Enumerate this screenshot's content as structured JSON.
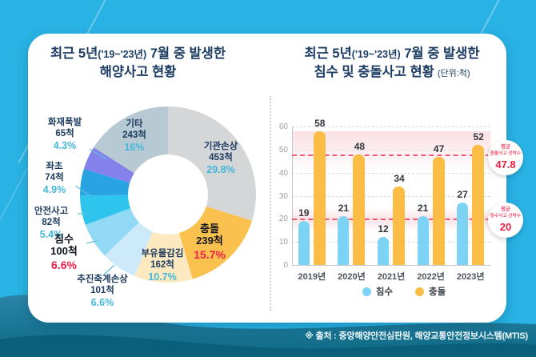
{
  "canvas": {
    "bg_color": "#29b2e4",
    "wave_color_top": "#2a85a8",
    "wave_color_bottom": "#0a5f7a",
    "card_color": "#ffffff"
  },
  "source_note": "※ 출처 : 중앙해양안전심판원, 해양교통안전정보시스템(MTIS)",
  "left_panel": {
    "title_line1_prefix": "최근 5년",
    "title_line1_paren": "('19~'23년)",
    "title_line1_suffix": " 7월 중 발생한",
    "title_line2": "해양사고 현황"
  },
  "right_panel": {
    "title_line1_prefix": "최근 5년",
    "title_line1_paren": "('19~'23년)",
    "title_line1_suffix": " 7월 중 발생한",
    "title_line2": "침수 및 충돌사고 현황",
    "unit_label": "(단위:척)"
  },
  "badges": [
    {
      "line1": "평균",
      "line2": "충돌사고 선박수",
      "value": "47.8"
    },
    {
      "line1": "평균",
      "line2": "침수사고 선박수",
      "value": "20"
    }
  ],
  "chart_data": [
    {
      "type": "pie",
      "subtype": "donut",
      "title": "최근 5년('19~'23년) 7월 중 발생한 해양사고 현황",
      "unit": "척",
      "accent_colors": {
        "navy_text": "#1e3c60",
        "cyan_pct_text": "#45b7d8",
        "red_highlight": "#f01f47"
      },
      "segments": [
        {
          "label": "기관손상",
          "value": 453,
          "pct": 29.8,
          "count_label": "453척",
          "pct_label": "29.8%",
          "color": "#d4d6d8",
          "emphasis": false
        },
        {
          "label": "충돌",
          "value": 239,
          "pct": 15.7,
          "count_label": "239척",
          "pct_label": "15.7%",
          "color": "#fbc14e",
          "emphasis": true
        },
        {
          "label": "부유물감김",
          "value": 162,
          "pct": 10.7,
          "count_label": "162척",
          "pct_label": "10.7%",
          "color": "#fce9c0",
          "emphasis": false
        },
        {
          "label": "추진축계손상",
          "value": 101,
          "pct": 6.6,
          "count_label": "101척",
          "pct_label": "6.6%",
          "color": "#cdeafa",
          "emphasis": false
        },
        {
          "label": "침수",
          "value": 100,
          "pct": 6.6,
          "count_label": "100척",
          "pct_label": "6.6%",
          "color": "#92d9f5",
          "emphasis": true
        },
        {
          "label": "안전사고",
          "value": 82,
          "pct": 5.4,
          "count_label": "82척",
          "pct_label": "5.4%",
          "color": "#2fc4ee",
          "emphasis": false
        },
        {
          "label": "좌초",
          "value": 74,
          "pct": 4.9,
          "count_label": "74척",
          "pct_label": "4.9%",
          "color": "#2aa3e2",
          "emphasis": false
        },
        {
          "label": "화재폭발",
          "value": 65,
          "pct": 4.3,
          "count_label": "65척",
          "pct_label": "4.3%",
          "color": "#8481ea",
          "emphasis": false
        },
        {
          "label": "기타",
          "value": 243,
          "pct": 16.0,
          "count_label": "243척",
          "pct_label": "16%",
          "color": "#b7c9d3",
          "emphasis": false
        }
      ]
    },
    {
      "type": "bar",
      "title": "최근 5년('19~'23년) 7월 중 발생한 침수 및 충돌사고 현황",
      "unit": "척",
      "categories": [
        "2019년",
        "2020년",
        "2021년",
        "2022년",
        "2023년"
      ],
      "series": [
        {
          "name": "침수",
          "color": "#7dd3f4",
          "values": [
            19,
            21,
            12,
            21,
            27
          ]
        },
        {
          "name": "충돌",
          "color": "#fbbd45",
          "values": [
            58,
            48,
            34,
            47,
            52
          ]
        }
      ],
      "ylim": [
        0,
        60
      ],
      "yticks": [
        0,
        10,
        20,
        30,
        40,
        50,
        60
      ],
      "grid": "dashed-horizontal",
      "legend_position": "bottom",
      "averages": [
        {
          "name": "평균 충돌사고 선박수",
          "value": 47.8,
          "display": "47.8"
        },
        {
          "name": "평균 침수사고 선박수",
          "value": 20,
          "display": "20"
        }
      ]
    }
  ]
}
